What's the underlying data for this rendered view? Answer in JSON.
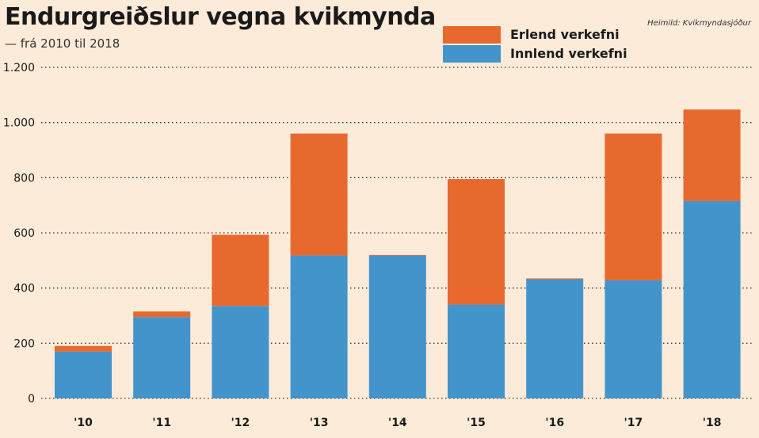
{
  "chart_data": {
    "type": "bar",
    "stacked": true,
    "title": "Endurgreiðslur vegna kvikmynda",
    "subtitle": "— frá 2010 til 2018",
    "source": "Heimild: Kvikmyndasjóður",
    "categories": [
      "'10",
      "'11",
      "'12",
      "'13",
      "'14",
      "'15",
      "'16",
      "'17",
      "'18"
    ],
    "series": [
      {
        "name": "Innlend verkefni",
        "color": "#4494cc",
        "values": [
          170,
          295,
          335,
          518,
          518,
          340,
          432,
          428,
          715
        ]
      },
      {
        "name": "Erlend verkefni",
        "color": "#e8692e",
        "values": [
          20,
          20,
          258,
          442,
          2,
          455,
          3,
          532,
          332
        ]
      }
    ],
    "ylim": [
      0,
      1200
    ],
    "yticks": [
      0,
      200,
      400,
      600,
      800,
      1000,
      1200
    ],
    "ytick_labels": [
      "0",
      "200",
      "400",
      "600",
      "800",
      "1.000",
      "1.200"
    ],
    "grid": true,
    "legend_position": "top"
  }
}
